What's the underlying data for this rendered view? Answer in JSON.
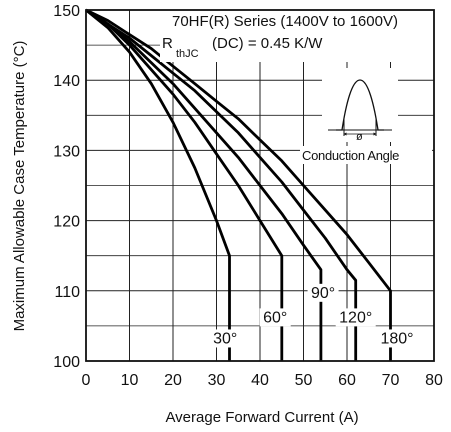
{
  "chart_data": {
    "type": "line",
    "title": "",
    "xlabel": "Average Forward Current (A)",
    "ylabel": "Maximum Allowable Case Temperature (°C)",
    "xlim": [
      0,
      80
    ],
    "ylim": [
      100,
      150
    ],
    "x_ticks": [
      "0",
      "10",
      "20",
      "30",
      "40",
      "50",
      "60",
      "70",
      "80"
    ],
    "y_ticks": [
      "100",
      "110",
      "120",
      "130",
      "140",
      "150"
    ],
    "grid": true,
    "annotation": {
      "line1": "70HF(R) Series (1400V to 1600V)",
      "r_main": "R",
      "r_sub": "thJC",
      "r_rest": "(DC) = 0.45 K/W",
      "phi_symbol": "ø",
      "conduction_label": "Conduction Angle"
    },
    "series": [
      {
        "name": "30°",
        "x": [
          0,
          5,
          10,
          15,
          20,
          25,
          30,
          33,
          33
        ],
        "y": [
          150,
          147.5,
          144,
          139.5,
          134,
          127.5,
          120,
          115,
          100
        ]
      },
      {
        "name": "60°",
        "x": [
          0,
          5,
          10,
          15,
          20,
          25,
          30,
          35,
          40,
          45,
          45
        ],
        "y": [
          150,
          148,
          145,
          141.5,
          138,
          134,
          129.5,
          125,
          120,
          115,
          100
        ]
      },
      {
        "name": "90°",
        "x": [
          0,
          5,
          10,
          15,
          20,
          25,
          30,
          35,
          40,
          45,
          50,
          54,
          54
        ],
        "y": [
          150,
          148,
          145.5,
          142.5,
          139.5,
          136,
          132.5,
          129,
          125,
          121,
          116.5,
          113,
          100
        ]
      },
      {
        "name": "120°",
        "x": [
          0,
          5,
          10,
          15,
          20,
          25,
          30,
          35,
          40,
          45,
          50,
          55,
          60,
          62,
          62
        ],
        "y": [
          150,
          148,
          146,
          143.5,
          141,
          138.5,
          135.5,
          132.5,
          129,
          125.5,
          121.5,
          117.5,
          113,
          111.5,
          100
        ]
      },
      {
        "name": "180°",
        "x": [
          0,
          5,
          10,
          15,
          20,
          25,
          30,
          35,
          40,
          45,
          50,
          55,
          60,
          65,
          70,
          70
        ],
        "y": [
          150,
          148.5,
          146.5,
          144.5,
          142,
          139.5,
          137,
          134.5,
          131.5,
          128.5,
          125,
          121.5,
          118,
          114,
          110,
          100
        ]
      }
    ],
    "series_label_positions": [
      {
        "name": "30°",
        "x": 32,
        "y": 102.5
      },
      {
        "name": "60°",
        "x": 43.5,
        "y": 105.5
      },
      {
        "name": "90°",
        "x": 54.5,
        "y": 109
      },
      {
        "name": "120°",
        "x": 62,
        "y": 105.5
      },
      {
        "name": "180°",
        "x": 71.5,
        "y": 102.5
      }
    ]
  }
}
